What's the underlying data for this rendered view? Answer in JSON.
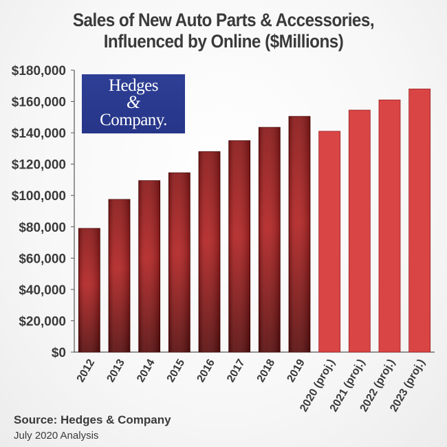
{
  "title": {
    "line1": "Sales of New Auto Parts & Accessories,",
    "line2": "Influenced by Online ($Millions)"
  },
  "logo": {
    "line1": "Hedges",
    "line2": "&",
    "line3": "Company."
  },
  "footer": {
    "source": "Source: Hedges & Company",
    "analysis": "July 2020 Analysis"
  },
  "colors": {
    "actual_dark": "#5e0d0d",
    "actual_mid": "#b02020",
    "projected": "#d94545",
    "text": "#3a3a3a",
    "logo_bg": "#2e3f95"
  },
  "chart_data": {
    "type": "bar",
    "categories": [
      "2012",
      "2013",
      "2014",
      "2015",
      "2016",
      "2017",
      "2018",
      "2019",
      "2020 (proj.)",
      "2021 (proj.)",
      "2022 (proj.)",
      "2023 (proj.)"
    ],
    "values": [
      79000,
      97500,
      109500,
      114500,
      128000,
      135000,
      143500,
      150500,
      141000,
      154500,
      161000,
      168000
    ],
    "projected": [
      false,
      false,
      false,
      false,
      false,
      false,
      false,
      false,
      true,
      true,
      true,
      true
    ],
    "ylim": [
      0,
      180000
    ],
    "yticks": [
      0,
      20000,
      40000,
      60000,
      80000,
      100000,
      120000,
      140000,
      160000,
      180000
    ],
    "ytick_labels": [
      "$0",
      "$20,000",
      "$40,000",
      "$60,000",
      "$80,000",
      "$100,000",
      "$120,000",
      "$140,000",
      "$160,000",
      "$180,000"
    ],
    "grid": false,
    "legend": false
  }
}
